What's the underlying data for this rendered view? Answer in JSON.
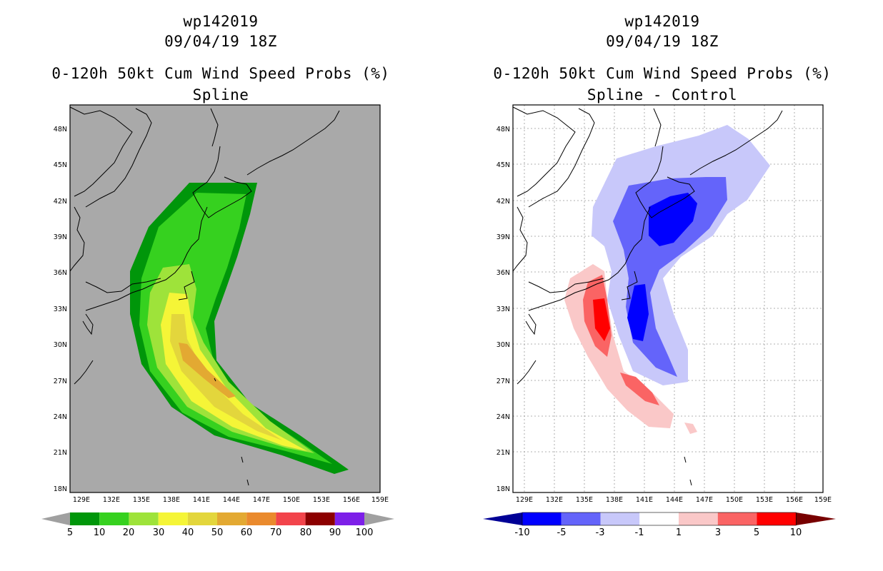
{
  "left": {
    "title1": "wp142019",
    "title2": "09/04/19 18Z",
    "title3": "0-120h 50kt Cum Wind Speed Probs (%)",
    "title4": "Spline",
    "lat_labels": [
      "48N",
      "45N",
      "42N",
      "39N",
      "36N",
      "33N",
      "30N",
      "27N",
      "24N",
      "21N",
      "18N"
    ],
    "lon_labels": [
      "129E",
      "132E",
      "135E",
      "138E",
      "141E",
      "144E",
      "147E",
      "150E",
      "153E",
      "156E",
      "159E"
    ],
    "colorbar": {
      "labels": [
        "5",
        "10",
        "20",
        "30",
        "40",
        "50",
        "60",
        "70",
        "80",
        "90",
        "100"
      ],
      "colors": [
        "#00960a",
        "#36d11f",
        "#9ee33a",
        "#f5f537",
        "#e3d63c",
        "#e3a932",
        "#ea8a2d",
        "#f2444b",
        "#8c0000",
        "#7d1fe8"
      ],
      "end_color": "#a0a0a0"
    }
  },
  "right": {
    "title1": "wp142019",
    "title2": "09/04/19 18Z",
    "title3": "0-120h 50kt Cum Wind Speed Probs (%)",
    "title4": "Spline - Control",
    "lat_labels": [
      "48N",
      "45N",
      "42N",
      "39N",
      "36N",
      "33N",
      "30N",
      "27N",
      "24N",
      "21N",
      "18N"
    ],
    "lon_labels": [
      "129E",
      "132E",
      "135E",
      "138E",
      "141E",
      "144E",
      "147E",
      "150E",
      "153E",
      "156E",
      "159E"
    ],
    "colorbar": {
      "labels": [
        "-10",
        "-5",
        "-3",
        "-1",
        "1",
        "3",
        "5",
        "10"
      ],
      "colors": [
        "#0000c8",
        "#0000ff",
        "#6464fa",
        "#c8c8fa",
        "#ffffff",
        "#fac8c8",
        "#fa6464",
        "#ff0000",
        "#c80000"
      ],
      "neg_end": "#000096",
      "pos_end": "#780000"
    }
  }
}
